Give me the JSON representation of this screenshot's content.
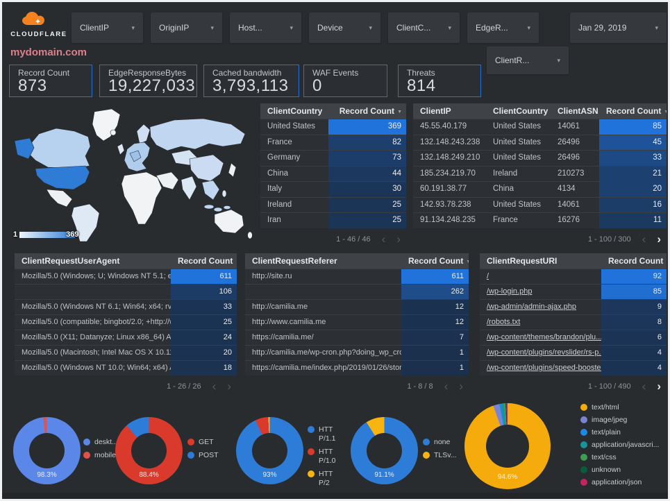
{
  "brand": "CLOUDFLARE",
  "page_title": "mydomain.com",
  "header": {
    "filters": [
      "ClientIP",
      "OriginIP",
      "Host...",
      "Device",
      "ClientC...",
      "EdgeR..."
    ],
    "secondary_filter": "ClientR...",
    "date_filter": "Jan 29, 2019"
  },
  "icons": {
    "dropdown_arrow": "▾",
    "sort_desc": "▼",
    "prev": "‹",
    "next": "›",
    "asc": "▲",
    "desc": "▼"
  },
  "colors": {
    "heat_low": "#1b304d",
    "heat_high": "#2173dc",
    "map_high": "#2e7cd6",
    "accent_border": "#2a6fd2"
  },
  "scorecards": [
    {
      "label": "Record Count",
      "value": "873"
    },
    {
      "label": "EdgeResponseBytes",
      "value": "19,227,033"
    },
    {
      "label": "Cached bandwidth",
      "value": "3,793,113"
    },
    {
      "label": "WAF Events",
      "value": "0"
    },
    {
      "label": "Threats",
      "value": "814"
    }
  ],
  "map": {
    "legend_min": "1",
    "legend_max": "369"
  },
  "tables": [
    {
      "key": "client_country",
      "columns": [
        "ClientCountry",
        "Record Count"
      ],
      "rows": [
        [
          "United States",
          "369"
        ],
        [
          "France",
          "82"
        ],
        [
          "Germany",
          "73"
        ],
        [
          "China",
          "44"
        ],
        [
          "Italy",
          "30"
        ],
        [
          "Ireland",
          "25"
        ],
        [
          "Iran",
          "25"
        ]
      ],
      "max": 369,
      "links": false,
      "pagination": {
        "label": "1 - 46 / 46",
        "prev": false,
        "next": false
      }
    },
    {
      "key": "client_ip",
      "columns": [
        "ClientIP",
        "ClientCountry",
        "ClientASN",
        "Record Count"
      ],
      "rows": [
        [
          "45.55.40.179",
          "United States",
          "14061",
          "85"
        ],
        [
          "132.148.243.238",
          "United States",
          "26496",
          "45"
        ],
        [
          "132.148.249.210",
          "United States",
          "26496",
          "33"
        ],
        [
          "185.234.219.70",
          "Ireland",
          "210273",
          "21"
        ],
        [
          "60.191.38.77",
          "China",
          "4134",
          "20"
        ],
        [
          "142.93.78.238",
          "United States",
          "14061",
          "16"
        ],
        [
          "91.134.248.235",
          "France",
          "16276",
          "11"
        ]
      ],
      "max": 85,
      "links": false,
      "pagination": {
        "label": "1 - 100 / 300",
        "prev": false,
        "next": true
      }
    },
    {
      "key": "user_agent",
      "columns": [
        "ClientRequestUserAgent",
        "Record Count"
      ],
      "rows": [
        [
          "Mozilla/5.0 (Windows; U; Windows NT 5.1; en-U...",
          "611"
        ],
        [
          "",
          "106"
        ],
        [
          "Mozilla/5.0 (Windows NT 6.1; Win64; x64; rv:64...",
          "33"
        ],
        [
          "Mozilla/5.0 (compatible; bingbot/2.0; +http://w...",
          "25"
        ],
        [
          "Mozilla/5.0 (X11; Datanyze; Linux x86_64) Appl...",
          "24"
        ],
        [
          "Mozilla/5.0 (Macintosh; Intel Mac OS X 10.11; r...",
          "20"
        ],
        [
          "Mozilla/5.0 (Windows NT 10.0; Win64; x64) App...",
          "18"
        ]
      ],
      "max": 611,
      "links": false,
      "pagination": {
        "label": "1 - 26 / 26",
        "prev": false,
        "next": false
      }
    },
    {
      "key": "referer",
      "columns": [
        "ClientRequestReferer",
        "Record Count"
      ],
      "rows": [
        [
          "http://site.ru",
          "611"
        ],
        [
          "",
          "262"
        ],
        [
          "http://camilia.me",
          "12"
        ],
        [
          "http://www.camilia.me",
          "12"
        ],
        [
          "https://camilia.me/",
          "7"
        ],
        [
          "http://camilia.me/wp-cron.php?doing_wp_cron...",
          "1"
        ],
        [
          "https://camilia.me/index.php/2019/01/26/stor...",
          "1"
        ]
      ],
      "max": 611,
      "links": false,
      "pagination": {
        "label": "1 - 8 / 8",
        "prev": false,
        "next": false
      }
    },
    {
      "key": "uri",
      "columns": [
        "ClientRequestURI",
        "Record Count"
      ],
      "rows": [
        [
          "/",
          "92"
        ],
        [
          "/wp-login.php",
          "85"
        ],
        [
          "/wp-admin/admin-ajax.php",
          "9"
        ],
        [
          "/robots.txt",
          "8"
        ],
        [
          "/wp-content/themes/brandon/plu...",
          "6"
        ],
        [
          "/wp-content/plugins/revslider/rs-p...",
          "4"
        ],
        [
          "/wp-content/plugins/speed-booste...",
          "4"
        ]
      ],
      "max": 92,
      "links": true,
      "pagination": {
        "label": "1 - 100 / 490",
        "prev": false,
        "next": true
      }
    }
  ],
  "donuts": [
    {
      "label": "98.3%",
      "slices": [
        {
          "name": "deskt...",
          "value": 98.3,
          "color": "#5b87e8"
        },
        {
          "name": "mobile",
          "value": 1.7,
          "color": "#e2514a"
        }
      ]
    },
    {
      "label": "88.4%",
      "slices": [
        {
          "name": "GET",
          "value": 88.4,
          "color": "#d93a2b"
        },
        {
          "name": "POST",
          "value": 11.6,
          "color": "#2d7cd8"
        }
      ]
    },
    {
      "label": "93%",
      "slices": [
        {
          "name": "HTTP/1.1",
          "value": 93,
          "color": "#2d7cd8"
        },
        {
          "name": "HTTP/1.0",
          "value": 6.3,
          "color": "#d93a2b"
        },
        {
          "name": "HTTP/2",
          "value": 0.7,
          "color": "#f8b411"
        }
      ]
    },
    {
      "label": "91.1%",
      "slices": [
        {
          "name": "none",
          "value": 91.1,
          "color": "#2d7cd8"
        },
        {
          "name": "TLSv...",
          "value": 8.9,
          "color": "#f8b411"
        }
      ]
    },
    {
      "label": "94.6%",
      "has_sort_arrows": true,
      "slices": [
        {
          "name": "text/html",
          "value": 94.6,
          "color": "#f5ab0c"
        },
        {
          "name": "image/jpeg",
          "value": 2.3,
          "color": "#7b84d0"
        },
        {
          "name": "text/plain",
          "value": 0.7,
          "color": "#1e88e5"
        },
        {
          "name": "application/javascri...",
          "value": 1.0,
          "color": "#17939b"
        },
        {
          "name": "text/css",
          "value": 0.6,
          "color": "#3d9e50"
        },
        {
          "name": "unknown",
          "value": 0.4,
          "color": "#0b5c3d"
        },
        {
          "name": "application/json",
          "value": 0.4,
          "color": "#c22662"
        }
      ]
    }
  ]
}
